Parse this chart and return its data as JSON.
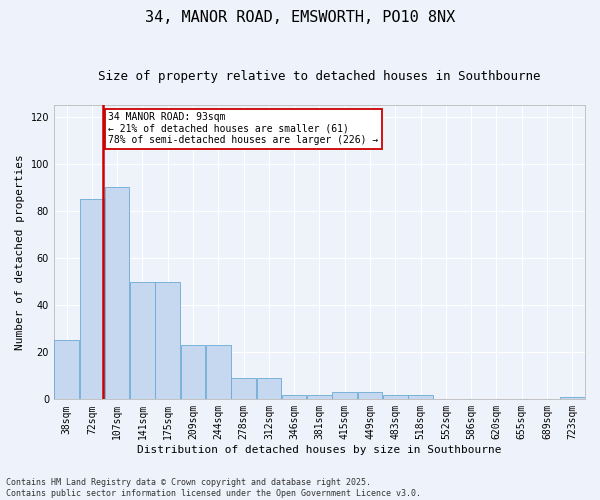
{
  "title": "34, MANOR ROAD, EMSWORTH, PO10 8NX",
  "subtitle": "Size of property relative to detached houses in Southbourne",
  "xlabel": "Distribution of detached houses by size in Southbourne",
  "ylabel": "Number of detached properties",
  "bar_heights": [
    25,
    85,
    90,
    50,
    50,
    23,
    23,
    9,
    9,
    2,
    2,
    3,
    3,
    2,
    2,
    0,
    0,
    0,
    0,
    0,
    1
  ],
  "bin_labels": [
    "38sqm",
    "72sqm",
    "107sqm",
    "141sqm",
    "175sqm",
    "209sqm",
    "244sqm",
    "278sqm",
    "312sqm",
    "346sqm",
    "381sqm",
    "415sqm",
    "449sqm",
    "483sqm",
    "518sqm",
    "552sqm",
    "586sqm",
    "620sqm",
    "655sqm",
    "689sqm",
    "723sqm"
  ],
  "bar_color": "#c5d8f0",
  "bar_edge_color": "#6aaad4",
  "vline_color": "#cc0000",
  "vline_x": 1.45,
  "annotation_text": "34 MANOR ROAD: 93sqm\n← 21% of detached houses are smaller (61)\n78% of semi-detached houses are larger (226) →",
  "annotation_box_color": "#cc0000",
  "ylim": [
    0,
    125
  ],
  "yticks": [
    0,
    20,
    40,
    60,
    80,
    100,
    120
  ],
  "background_color": "#eef2fa",
  "grid_color": "#ffffff",
  "footer_text": "Contains HM Land Registry data © Crown copyright and database right 2025.\nContains public sector information licensed under the Open Government Licence v3.0.",
  "title_fontsize": 11,
  "subtitle_fontsize": 9,
  "axis_label_fontsize": 8,
  "tick_fontsize": 7,
  "annotation_fontsize": 7,
  "footer_fontsize": 6
}
